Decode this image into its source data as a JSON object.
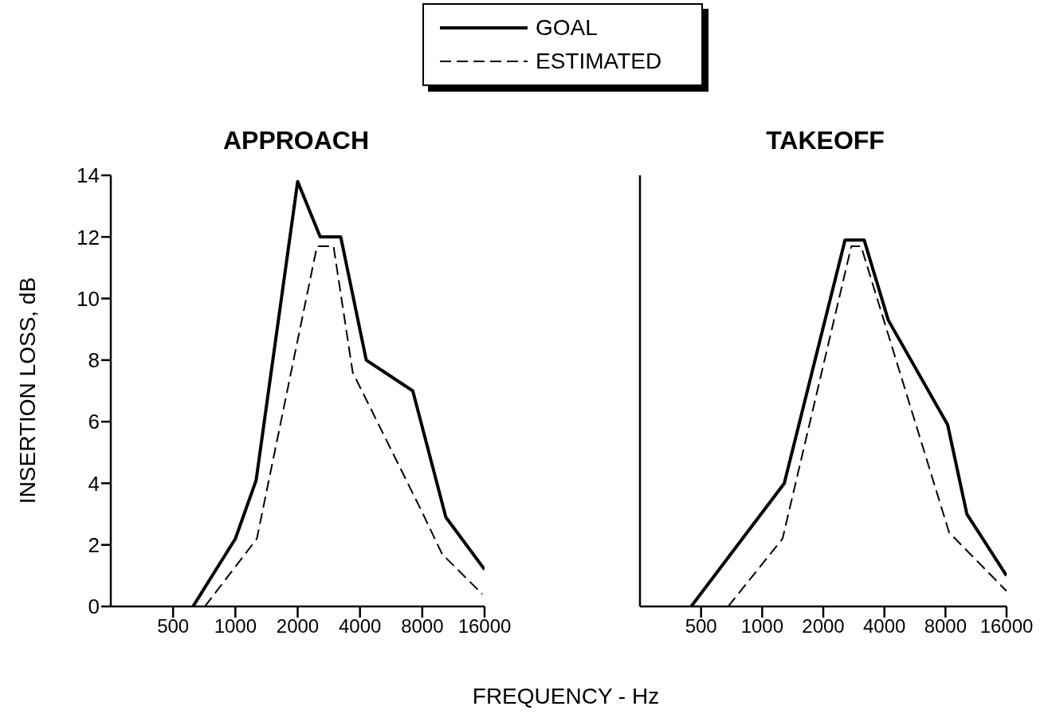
{
  "chart_data": [
    {
      "type": "line",
      "title": "APPROACH",
      "xlabel": "FREQUENCY - Hz",
      "ylabel": "INSERTION LOSS, dB",
      "legend": "top",
      "log": "x",
      "xlim": [
        250,
        16000
      ],
      "xticks": [
        500,
        1000,
        2000,
        4000,
        8000,
        16000
      ],
      "ylim": [
        0,
        14
      ],
      "yticks": [
        0,
        2,
        4,
        6,
        8,
        10,
        12,
        14
      ],
      "series": [
        {
          "name": "GOAL",
          "color": "#000000",
          "line_style": "solid",
          "x": [
            624,
            1000,
            1260,
            2000,
            2570,
            3230,
            4290,
            7200,
            10400,
            16000
          ],
          "values": [
            0,
            2.2,
            4.1,
            13.8,
            12.0,
            12.0,
            8.0,
            7.0,
            2.9,
            1.2
          ]
        },
        {
          "name": "ESTIMATED",
          "color": "#000000",
          "line_style": "dashed",
          "x": [
            712,
            1270,
            2480,
            2980,
            3690,
            7940,
            9980,
            15600
          ],
          "values": [
            0,
            2.2,
            11.7,
            11.7,
            7.6,
            3.1,
            1.7,
            0.4
          ]
        }
      ]
    },
    {
      "type": "line",
      "title": "TAKEOFF",
      "log": "x",
      "tick_labels": "x",
      "xlim": [
        250,
        16000
      ],
      "xticks": [
        500,
        1000,
        2000,
        4000,
        8000,
        16000
      ],
      "ylim": [
        0,
        14
      ],
      "yticks": [
        0,
        2,
        4,
        6,
        8,
        10,
        12,
        14
      ],
      "series": [
        {
          "color": "#000000",
          "line_style": "solid",
          "x": [
            447,
            1285,
            2560,
            3180,
            4180,
            8200,
            10200,
            16000
          ],
          "values": [
            0,
            4.0,
            11.9,
            11.9,
            9.3,
            5.9,
            3.0,
            1.0
          ]
        },
        {
          "color": "#000000",
          "line_style": "dashed",
          "x": [
            680,
            1260,
            2750,
            3070,
            8340,
            16000
          ],
          "values": [
            0,
            2.2,
            11.7,
            11.7,
            2.4,
            0.5
          ]
        }
      ]
    }
  ]
}
